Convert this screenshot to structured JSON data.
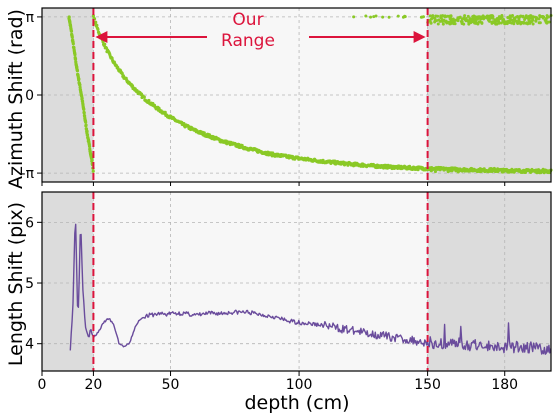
{
  "chart_data": [
    {
      "type": "scatter",
      "ylabel": "Azimuth Shift (rad)",
      "xlim": [
        0,
        198
      ],
      "ylim": [
        -3.5,
        3.5
      ],
      "yticks": [
        {
          "value": 3.14159,
          "label": "π"
        },
        {
          "value": 0,
          "label": "0"
        },
        {
          "value": -3.14159,
          "label": "-π"
        }
      ],
      "grid": true,
      "series": [
        {
          "color": "#8ac926",
          "curve_left": {
            "x": [
              10.5,
              11.5,
              12.5,
              13.5,
              14.5,
              15.5,
              16.5,
              17.5,
              18.5,
              19.5,
              20
            ],
            "y": [
              3.14,
              2.5,
              1.8,
              1.1,
              0.5,
              -0.1,
              -0.8,
              -1.5,
              -2.1,
              -2.7,
              -3.05
            ]
          },
          "curve_main": {
            "x": [
              20,
              22,
              25,
              28,
              32,
              36,
              40,
              45,
              50,
              55,
              60,
              70,
              80,
              90,
              100,
              110,
              120,
              130,
              140,
              150,
              160,
              170,
              180,
              190,
              198
            ],
            "y": [
              3.14,
              2.55,
              1.85,
              1.3,
              0.7,
              0.25,
              -0.15,
              -0.55,
              -0.9,
              -1.2,
              -1.45,
              -1.85,
              -2.15,
              -2.4,
              -2.55,
              -2.68,
              -2.78,
              -2.86,
              -2.92,
              -2.96,
              -2.99,
              -3.02,
              -3.04,
              -3.06,
              -3.07
            ]
          },
          "band_top_wrap": {
            "x": [
              120,
              198
            ],
            "y": [
              2.85,
              3.2
            ]
          },
          "band_bottom_wrap": {
            "x": [
              150,
              198
            ],
            "y": [
              -3.1,
              -2.95
            ]
          }
        }
      ]
    },
    {
      "type": "line",
      "xlabel": "depth (cm)",
      "ylabel": "Length Shift (pix)",
      "xlim": [
        0,
        198
      ],
      "ylim": [
        3.55,
        6.5
      ],
      "yticks": [
        4,
        5,
        6
      ],
      "xticks": [
        0,
        20,
        50,
        100,
        150,
        180
      ],
      "grid": true,
      "series": [
        {
          "color": "#6a4c9c",
          "x": [
            11,
            12,
            13,
            14,
            15,
            16,
            17,
            18,
            19,
            20,
            22,
            24,
            26,
            28,
            30,
            32,
            34,
            36,
            38,
            40,
            42,
            44,
            46,
            48,
            50,
            55,
            60,
            65,
            70,
            75,
            80,
            85,
            90,
            95,
            100,
            110,
            120,
            130,
            140,
            150,
            160,
            170,
            180,
            190,
            198
          ],
          "y": [
            3.95,
            4.6,
            6.2,
            4.3,
            6.05,
            4.8,
            4.3,
            4.15,
            4.2,
            4.1,
            4.2,
            4.35,
            4.42,
            4.3,
            4.0,
            3.95,
            4.0,
            4.25,
            4.4,
            4.45,
            4.47,
            4.48,
            4.5,
            4.48,
            4.5,
            4.5,
            4.47,
            4.5,
            4.5,
            4.52,
            4.52,
            4.48,
            4.45,
            4.38,
            4.35,
            4.3,
            4.22,
            4.15,
            4.08,
            4.02,
            4.0,
            3.97,
            3.95,
            3.93,
            3.92
          ]
        }
      ]
    }
  ],
  "shared": {
    "our_range": [
      20,
      150
    ],
    "shaded_left": [
      0,
      20
    ],
    "shaded_right": [
      150,
      198
    ],
    "range_label_line1": "Our",
    "range_label_line2": "Range",
    "range_color": "#dc143c",
    "shade_color": "#dcdcdc",
    "inner_color": "#f7f7f7"
  }
}
